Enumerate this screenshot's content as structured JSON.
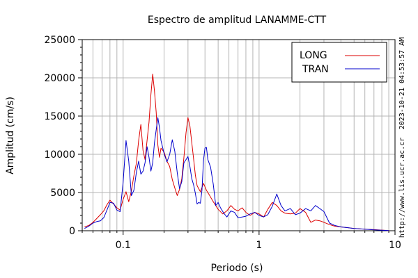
{
  "chart_data": {
    "type": "line",
    "title": "Espectro de amplitud LANAMME-CTT",
    "xlabel": "Periodo (s)",
    "ylabel": "Amplitud (cm/s)",
    "x_scale": "log",
    "xlim": [
      0.05,
      10
    ],
    "ylim": [
      0,
      25000
    ],
    "x_ticks": [
      {
        "value": 0.1,
        "label": "0.1"
      },
      {
        "value": 1,
        "label": "1"
      },
      {
        "value": 10,
        "label": "10"
      }
    ],
    "y_ticks": [
      {
        "value": 0,
        "label": "0"
      },
      {
        "value": 5000,
        "label": "5000"
      },
      {
        "value": 10000,
        "label": "10000"
      },
      {
        "value": 15000,
        "label": "15000"
      },
      {
        "value": 20000,
        "label": "20000"
      },
      {
        "value": 25000,
        "label": "25000"
      }
    ],
    "grid": true,
    "legend_position": "top-right",
    "side_labels": {
      "timestamp": "2023-10-21 04:53:57 AM",
      "url": "http://www.lis.ucr.ac.cr"
    },
    "series": [
      {
        "name": "LONG",
        "color": "#dd0000",
        "points": [
          [
            0.052,
            500
          ],
          [
            0.056,
            700
          ],
          [
            0.06,
            1100
          ],
          [
            0.064,
            1600
          ],
          [
            0.068,
            2100
          ],
          [
            0.072,
            2600
          ],
          [
            0.076,
            3400
          ],
          [
            0.08,
            4000
          ],
          [
            0.085,
            3500
          ],
          [
            0.09,
            3000
          ],
          [
            0.095,
            2700
          ],
          [
            0.1,
            4100
          ],
          [
            0.105,
            5100
          ],
          [
            0.11,
            3800
          ],
          [
            0.115,
            5200
          ],
          [
            0.12,
            7200
          ],
          [
            0.125,
            8800
          ],
          [
            0.13,
            11800
          ],
          [
            0.135,
            13900
          ],
          [
            0.14,
            10500
          ],
          [
            0.145,
            9300
          ],
          [
            0.15,
            11800
          ],
          [
            0.155,
            14200
          ],
          [
            0.16,
            17800
          ],
          [
            0.165,
            20500
          ],
          [
            0.17,
            18300
          ],
          [
            0.175,
            15500
          ],
          [
            0.18,
            11200
          ],
          [
            0.185,
            9600
          ],
          [
            0.19,
            10800
          ],
          [
            0.2,
            10300
          ],
          [
            0.21,
            9100
          ],
          [
            0.22,
            8400
          ],
          [
            0.23,
            6700
          ],
          [
            0.24,
            5600
          ],
          [
            0.25,
            4600
          ],
          [
            0.26,
            5400
          ],
          [
            0.27,
            6800
          ],
          [
            0.28,
            9600
          ],
          [
            0.29,
            12800
          ],
          [
            0.3,
            14800
          ],
          [
            0.31,
            13700
          ],
          [
            0.32,
            11500
          ],
          [
            0.33,
            9400
          ],
          [
            0.34,
            7300
          ],
          [
            0.35,
            5900
          ],
          [
            0.37,
            5100
          ],
          [
            0.39,
            6200
          ],
          [
            0.41,
            5300
          ],
          [
            0.43,
            4700
          ],
          [
            0.46,
            3800
          ],
          [
            0.5,
            2800
          ],
          [
            0.54,
            2200
          ],
          [
            0.58,
            2600
          ],
          [
            0.62,
            3300
          ],
          [
            0.66,
            2800
          ],
          [
            0.7,
            2600
          ],
          [
            0.75,
            3000
          ],
          [
            0.8,
            2400
          ],
          [
            0.86,
            2000
          ],
          [
            0.93,
            2400
          ],
          [
            1.0,
            2200
          ],
          [
            1.08,
            1800
          ],
          [
            1.16,
            2800
          ],
          [
            1.25,
            3700
          ],
          [
            1.35,
            3300
          ],
          [
            1.45,
            2600
          ],
          [
            1.55,
            2300
          ],
          [
            1.7,
            2200
          ],
          [
            1.85,
            2300
          ],
          [
            2.0,
            2900
          ],
          [
            2.2,
            2400
          ],
          [
            2.4,
            1100
          ],
          [
            2.6,
            1400
          ],
          [
            2.8,
            1300
          ],
          [
            3.0,
            1100
          ],
          [
            3.3,
            800
          ],
          [
            3.6,
            600
          ],
          [
            4.0,
            500
          ],
          [
            4.5,
            400
          ],
          [
            5.0,
            300
          ],
          [
            6.0,
            200
          ],
          [
            7.0,
            150
          ],
          [
            8.0,
            80
          ],
          [
            9.0,
            30
          ]
        ]
      },
      {
        "name": "TRAN",
        "color": "#0000cc",
        "points": [
          [
            0.052,
            300
          ],
          [
            0.056,
            600
          ],
          [
            0.06,
            1000
          ],
          [
            0.064,
            1200
          ],
          [
            0.068,
            1300
          ],
          [
            0.072,
            1700
          ],
          [
            0.076,
            2700
          ],
          [
            0.08,
            3700
          ],
          [
            0.085,
            3600
          ],
          [
            0.09,
            2700
          ],
          [
            0.095,
            2500
          ],
          [
            0.1,
            6300
          ],
          [
            0.105,
            11800
          ],
          [
            0.11,
            9100
          ],
          [
            0.115,
            4600
          ],
          [
            0.12,
            5300
          ],
          [
            0.125,
            7600
          ],
          [
            0.13,
            9100
          ],
          [
            0.135,
            7400
          ],
          [
            0.14,
            7800
          ],
          [
            0.145,
            8900
          ],
          [
            0.15,
            11000
          ],
          [
            0.155,
            9600
          ],
          [
            0.16,
            7800
          ],
          [
            0.165,
            8900
          ],
          [
            0.17,
            11500
          ],
          [
            0.175,
            13200
          ],
          [
            0.18,
            14800
          ],
          [
            0.185,
            13500
          ],
          [
            0.19,
            11800
          ],
          [
            0.2,
            10100
          ],
          [
            0.21,
            9000
          ],
          [
            0.22,
            10000
          ],
          [
            0.23,
            11900
          ],
          [
            0.24,
            10400
          ],
          [
            0.25,
            7600
          ],
          [
            0.26,
            5500
          ],
          [
            0.27,
            6400
          ],
          [
            0.28,
            8900
          ],
          [
            0.29,
            9300
          ],
          [
            0.3,
            9700
          ],
          [
            0.31,
            8400
          ],
          [
            0.32,
            6800
          ],
          [
            0.33,
            6000
          ],
          [
            0.34,
            4900
          ],
          [
            0.35,
            3500
          ],
          [
            0.36,
            3700
          ],
          [
            0.37,
            3600
          ],
          [
            0.38,
            5300
          ],
          [
            0.39,
            9200
          ],
          [
            0.4,
            10800
          ],
          [
            0.41,
            10900
          ],
          [
            0.42,
            9300
          ],
          [
            0.44,
            8300
          ],
          [
            0.46,
            6100
          ],
          [
            0.48,
            3300
          ],
          [
            0.5,
            3700
          ],
          [
            0.52,
            3000
          ],
          [
            0.55,
            2300
          ],
          [
            0.58,
            1800
          ],
          [
            0.62,
            2600
          ],
          [
            0.66,
            2400
          ],
          [
            0.7,
            1700
          ],
          [
            0.75,
            1800
          ],
          [
            0.8,
            1900
          ],
          [
            0.86,
            2200
          ],
          [
            0.93,
            2400
          ],
          [
            1.0,
            2000
          ],
          [
            1.08,
            1800
          ],
          [
            1.16,
            2100
          ],
          [
            1.25,
            3200
          ],
          [
            1.35,
            4800
          ],
          [
            1.45,
            3300
          ],
          [
            1.55,
            2600
          ],
          [
            1.7,
            2900
          ],
          [
            1.85,
            2100
          ],
          [
            2.0,
            2300
          ],
          [
            2.2,
            2900
          ],
          [
            2.4,
            2600
          ],
          [
            2.6,
            3300
          ],
          [
            2.8,
            2900
          ],
          [
            3.0,
            2500
          ],
          [
            3.3,
            1000
          ],
          [
            3.6,
            700
          ],
          [
            4.0,
            500
          ],
          [
            4.5,
            400
          ],
          [
            5.0,
            300
          ],
          [
            6.0,
            200
          ],
          [
            7.0,
            120
          ],
          [
            8.0,
            60
          ],
          [
            9.0,
            20
          ]
        ]
      }
    ]
  }
}
